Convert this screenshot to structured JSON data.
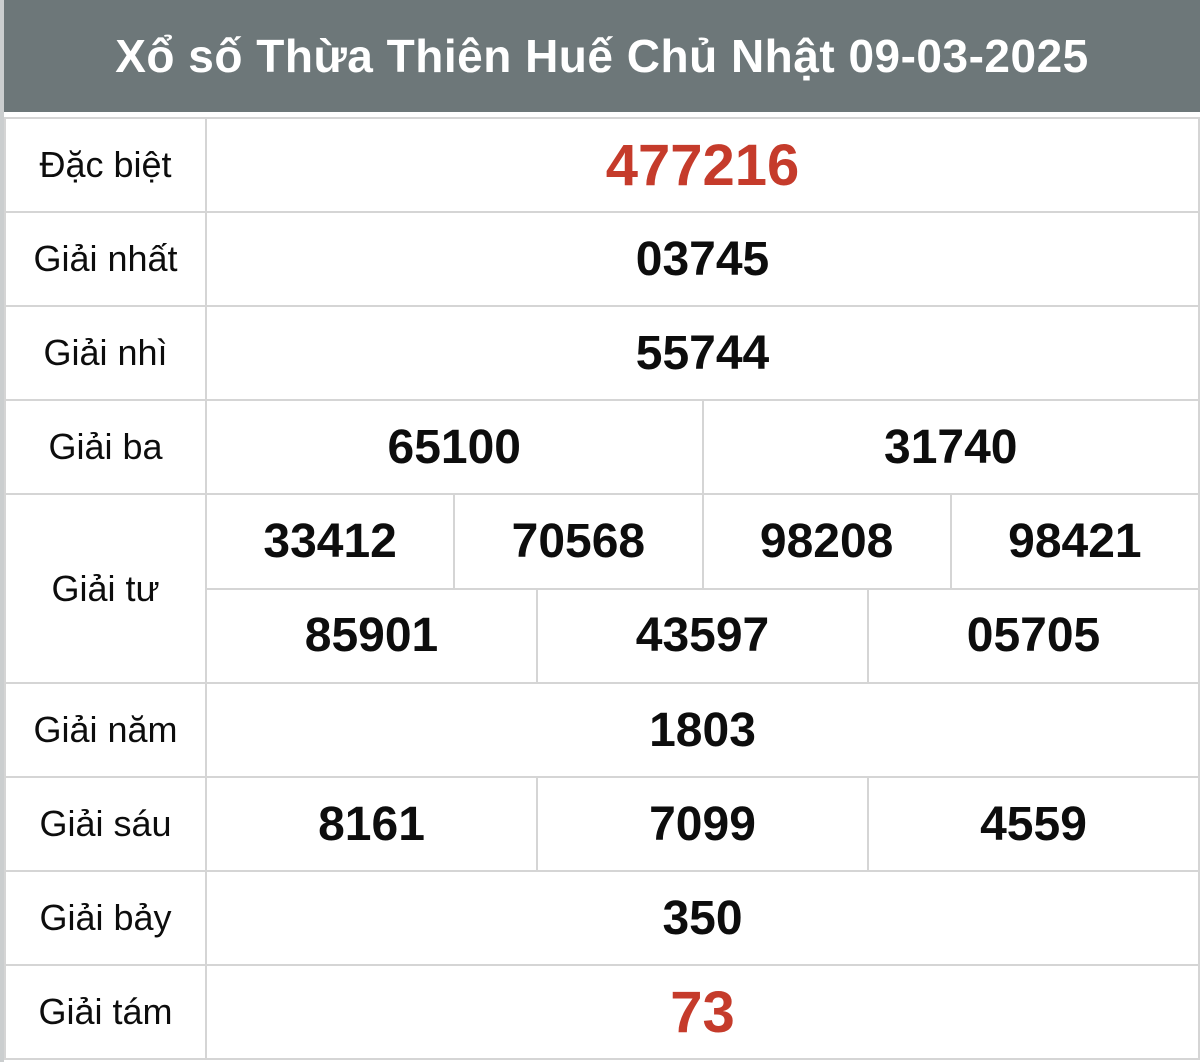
{
  "header": {
    "title": "Xổ số Thừa Thiên Huế Chủ Nhật 09-03-2025"
  },
  "colors": {
    "header_bg": "#6d7779",
    "header_text": "#ffffff",
    "special_red": "#c53b2b",
    "number_text": "#0d0d0d",
    "grid_line": "#d5d5d5",
    "cell_bg": "#ffffff"
  },
  "table": {
    "rows": [
      {
        "label": "Đặc biệt",
        "cells": [
          "477216"
        ],
        "highlight": true
      },
      {
        "label": "Giải nhất",
        "cells": [
          "03745"
        ]
      },
      {
        "label": "Giải nhì",
        "cells": [
          "55744"
        ]
      },
      {
        "label": "Giải ba",
        "cells": [
          "65100",
          "31740"
        ]
      },
      {
        "label": "Giải tư",
        "subrows": [
          [
            "33412",
            "70568",
            "98208",
            "98421"
          ],
          [
            "85901",
            "43597",
            "05705"
          ]
        ]
      },
      {
        "label": "Giải năm",
        "cells": [
          "1803"
        ]
      },
      {
        "label": "Giải sáu",
        "cells": [
          "8161",
          "7099",
          "4559"
        ]
      },
      {
        "label": "Giải bảy",
        "cells": [
          "350"
        ]
      },
      {
        "label": "Giải tám",
        "cells": [
          "73"
        ],
        "highlight": true
      }
    ]
  }
}
